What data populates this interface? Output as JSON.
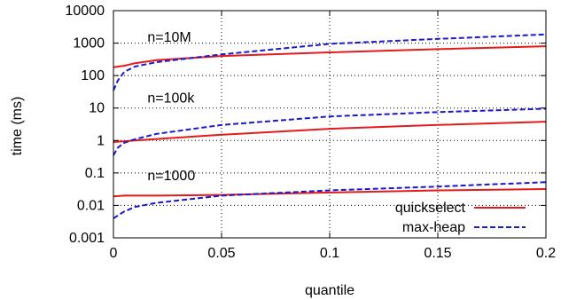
{
  "chart_data": {
    "type": "line",
    "xlabel": "quantile",
    "ylabel": "time (ms)",
    "xlim": [
      0,
      0.2
    ],
    "ylim": [
      0.001,
      10000
    ],
    "yscale": "log",
    "grid": true,
    "legend_position": "bottom-right",
    "x_ticks": [
      0,
      0.05,
      0.1,
      0.15,
      0.2
    ],
    "x_tick_labels": [
      "0",
      "0.05",
      "0.1",
      "0.15",
      "0.2"
    ],
    "y_ticks": [
      0.001,
      0.01,
      0.1,
      1,
      10,
      100,
      1000,
      10000
    ],
    "y_tick_labels": [
      "0.001",
      "0.01",
      "0.1",
      "1",
      "10",
      "100",
      "1000",
      "10000"
    ],
    "annotations": [
      {
        "text": "n=10M",
        "x": 0.01,
        "y": 1100
      },
      {
        "text": "n=100k",
        "x": 0.01,
        "y": 15
      },
      {
        "text": "n=1000",
        "x": 0.01,
        "y": 0.06
      }
    ],
    "series": [
      {
        "name": "quickselect",
        "group": "n=10M",
        "color": "#e41a1c",
        "dash": "solid",
        "x": [
          0,
          0.005,
          0.01,
          0.02,
          0.05,
          0.1,
          0.15,
          0.2
        ],
        "y": [
          180,
          200,
          240,
          300,
          400,
          520,
          650,
          800
        ]
      },
      {
        "name": "max-heap",
        "group": "n=10M",
        "color": "#1a1acc",
        "dash": "dashed",
        "x": [
          0,
          0.002,
          0.005,
          0.01,
          0.02,
          0.05,
          0.1,
          0.15,
          0.2
        ],
        "y": [
          35,
          70,
          130,
          190,
          260,
          450,
          950,
          1350,
          1850
        ]
      },
      {
        "name": "quickselect",
        "group": "n=100k",
        "color": "#e41a1c",
        "dash": "solid",
        "x": [
          0,
          0.01,
          0.05,
          0.1,
          0.15,
          0.2
        ],
        "y": [
          0.9,
          1.0,
          1.5,
          2.3,
          3.0,
          3.8
        ]
      },
      {
        "name": "max-heap",
        "group": "n=100k",
        "color": "#1a1acc",
        "dash": "dashed",
        "x": [
          0,
          0.002,
          0.005,
          0.01,
          0.02,
          0.05,
          0.1,
          0.15,
          0.2
        ],
        "y": [
          0.35,
          0.6,
          0.85,
          1.1,
          1.6,
          3.0,
          5.5,
          7.5,
          9.5
        ]
      },
      {
        "name": "quickselect",
        "group": "n=1000",
        "color": "#e41a1c",
        "dash": "solid",
        "x": [
          0,
          0.005,
          0.02,
          0.05,
          0.1,
          0.15,
          0.2
        ],
        "y": [
          0.019,
          0.02,
          0.02,
          0.021,
          0.025,
          0.029,
          0.032
        ]
      },
      {
        "name": "max-heap",
        "group": "n=1000",
        "color": "#1a1acc",
        "dash": "dashed",
        "x": [
          0,
          0.005,
          0.01,
          0.02,
          0.05,
          0.1,
          0.15,
          0.2
        ],
        "y": [
          0.004,
          0.0065,
          0.009,
          0.012,
          0.02,
          0.029,
          0.038,
          0.052
        ]
      }
    ],
    "legend": [
      {
        "label": "quickselect",
        "color": "#e41a1c",
        "dash": "solid"
      },
      {
        "label": "max-heap",
        "color": "#1a1acc",
        "dash": "dashed"
      }
    ]
  }
}
